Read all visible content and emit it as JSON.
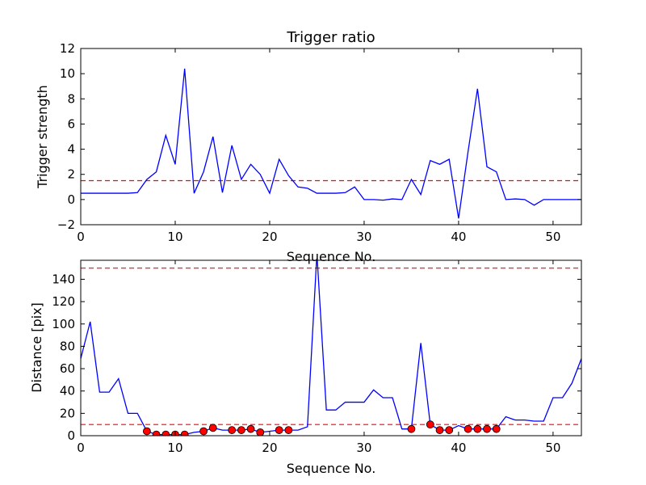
{
  "chart_data": [
    {
      "type": "line",
      "title": "Trigger ratio",
      "xlabel": "Sequence No.",
      "ylabel": "Trigger strength",
      "xlim": [
        0,
        53
      ],
      "ylim": [
        -2,
        12
      ],
      "xticks": [
        0,
        10,
        20,
        30,
        40,
        50
      ],
      "yticks": [
        -2,
        0,
        2,
        4,
        6,
        8,
        10,
        12
      ],
      "grid": false,
      "series": [
        {
          "color": "#0000ff",
          "style": "solid",
          "x": [
            0,
            1,
            2,
            3,
            4,
            5,
            6,
            7,
            8,
            9,
            10,
            11,
            12,
            13,
            14,
            15,
            16,
            17,
            18,
            19,
            20,
            21,
            22,
            23,
            24,
            25,
            26,
            27,
            28,
            29,
            30,
            31,
            32,
            33,
            34,
            35,
            36,
            37,
            38,
            39,
            40,
            41,
            42,
            43,
            44,
            45,
            46,
            47,
            48,
            49,
            50,
            51,
            52,
            53
          ],
          "y": [
            0.5,
            0.5,
            0.5,
            0.5,
            0.5,
            0.5,
            0.55,
            1.6,
            2.2,
            5.1,
            2.8,
            10.4,
            0.5,
            2.2,
            5.0,
            0.55,
            4.3,
            1.6,
            2.8,
            2.0,
            0.5,
            3.2,
            1.9,
            1.0,
            0.9,
            0.5,
            0.5,
            0.5,
            0.55,
            1.0,
            0.0,
            0.0,
            -0.05,
            0.05,
            0.0,
            1.6,
            0.4,
            3.1,
            2.8,
            3.2,
            -1.5,
            3.8,
            8.8,
            2.6,
            2.2,
            0.0,
            0.05,
            0.0,
            -0.45,
            0.0,
            0.0,
            0.0,
            0.0,
            0.0
          ]
        }
      ],
      "threshold_lines": [
        {
          "y": 1.5,
          "color": "#ff0000",
          "style": "dashed"
        }
      ]
    },
    {
      "type": "line",
      "title": "",
      "xlabel": "Sequence No.",
      "ylabel": "Distance [pix]",
      "xlim": [
        0,
        53
      ],
      "ylim": [
        0,
        157
      ],
      "xticks": [
        0,
        10,
        20,
        30,
        40,
        50
      ],
      "yticks": [
        0,
        20,
        40,
        60,
        80,
        100,
        120,
        140
      ],
      "grid": false,
      "series": [
        {
          "color": "#0000ff",
          "style": "solid",
          "x": [
            0,
            1,
            2,
            3,
            4,
            5,
            6,
            7,
            8,
            9,
            10,
            11,
            12,
            13,
            14,
            15,
            16,
            17,
            18,
            19,
            20,
            21,
            22,
            23,
            24,
            25,
            26,
            27,
            28,
            29,
            30,
            31,
            32,
            33,
            34,
            35,
            36,
            37,
            38,
            39,
            40,
            41,
            42,
            43,
            44,
            45,
            46,
            47,
            48,
            49,
            50,
            51,
            52,
            53
          ],
          "y": [
            69,
            102,
            39,
            39,
            51,
            20,
            20,
            4,
            1,
            1,
            1,
            1,
            3,
            4,
            7,
            5,
            5,
            5,
            6,
            3,
            4,
            5,
            5,
            5,
            8,
            163,
            23,
            23,
            30,
            30,
            30,
            41,
            34,
            34,
            6,
            6,
            83,
            10,
            5,
            5,
            9,
            6,
            6,
            6,
            6,
            17,
            14,
            14,
            13,
            13,
            34,
            34,
            47,
            69
          ]
        },
        {
          "color": "#ff0000",
          "style": "markers",
          "x": [
            7,
            8,
            9,
            10,
            11,
            13,
            14,
            16,
            17,
            18,
            19,
            21,
            22,
            35,
            37,
            38,
            39,
            41,
            42,
            43,
            44
          ],
          "y": [
            4,
            1,
            1,
            1,
            1,
            4,
            7,
            5,
            5,
            6,
            3,
            5,
            5,
            6,
            10,
            5,
            5,
            6,
            6,
            6,
            6
          ]
        }
      ],
      "threshold_lines": [
        {
          "y": 150,
          "color": "#ff0000",
          "style": "dashed"
        },
        {
          "y": 10,
          "color": "#ff0000",
          "style": "dashed"
        }
      ]
    }
  ]
}
